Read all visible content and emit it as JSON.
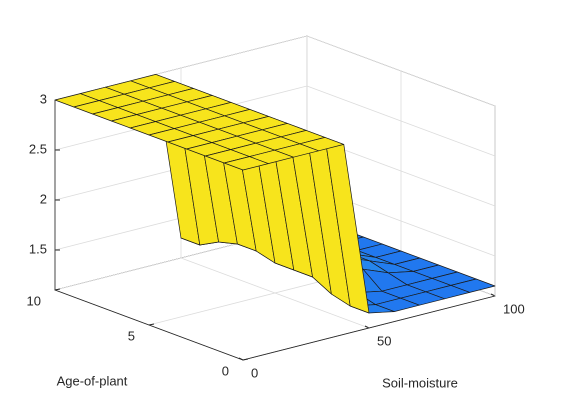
{
  "chart_data": {
    "type": "surface",
    "xlabel": "Soil-moisture",
    "ylabel": "Age-of-plant",
    "x": [
      0,
      10,
      20,
      30,
      40,
      50,
      60,
      70,
      80,
      90,
      100
    ],
    "y": [
      0,
      1,
      2,
      3,
      4,
      5,
      6,
      7,
      8,
      9,
      10
    ],
    "z": [
      [
        3,
        3,
        3,
        3,
        3,
        1.25,
        1.2,
        1.2,
        1.2,
        1.2,
        1.2
      ],
      [
        3,
        3,
        3,
        3,
        3,
        1.25,
        1.2,
        1.2,
        1.2,
        1.2,
        1.2
      ],
      [
        3,
        3,
        3,
        3,
        3,
        1.3,
        1.25,
        1.2,
        1.2,
        1.2,
        1.2
      ],
      [
        3,
        3,
        3,
        3,
        3,
        1.4,
        1.4,
        1.35,
        1.25,
        1.2,
        1.2
      ],
      [
        3,
        3,
        3,
        3,
        3,
        1.4,
        1.4,
        1.4,
        1.3,
        1.2,
        1.2
      ],
      [
        3,
        3,
        3,
        3,
        3,
        1.4,
        1.4,
        1.4,
        1.3,
        1.2,
        1.2
      ],
      [
        3,
        3,
        3,
        3,
        3,
        1.45,
        1.45,
        1.45,
        1.35,
        1.2,
        1.2
      ],
      [
        3,
        3,
        3,
        3,
        3,
        1.45,
        1.45,
        1.45,
        1.35,
        1.2,
        1.2
      ],
      [
        3,
        3,
        3,
        3,
        3,
        1.4,
        1.4,
        1.4,
        1.3,
        1.2,
        1.2
      ],
      [
        3,
        3,
        3,
        3,
        3,
        1.3,
        1.3,
        1.3,
        1.25,
        1.2,
        1.2
      ],
      [
        3,
        3,
        3,
        3,
        3,
        1.3,
        1.3,
        1.3,
        1.25,
        1.2,
        1.2
      ]
    ],
    "xlim": [
      0,
      100
    ],
    "xticks": [
      0,
      50,
      100
    ],
    "ylim": [
      0,
      10
    ],
    "yticks": [
      0,
      5,
      10
    ],
    "zlim": [
      1.1,
      3
    ],
    "zticks": [
      1.5,
      2,
      2.5,
      3
    ],
    "colormap": [
      "#1f6ff2",
      "#2a9be6",
      "#35bfa8",
      "#c6c833",
      "#f7e41c"
    ],
    "grid": true
  }
}
